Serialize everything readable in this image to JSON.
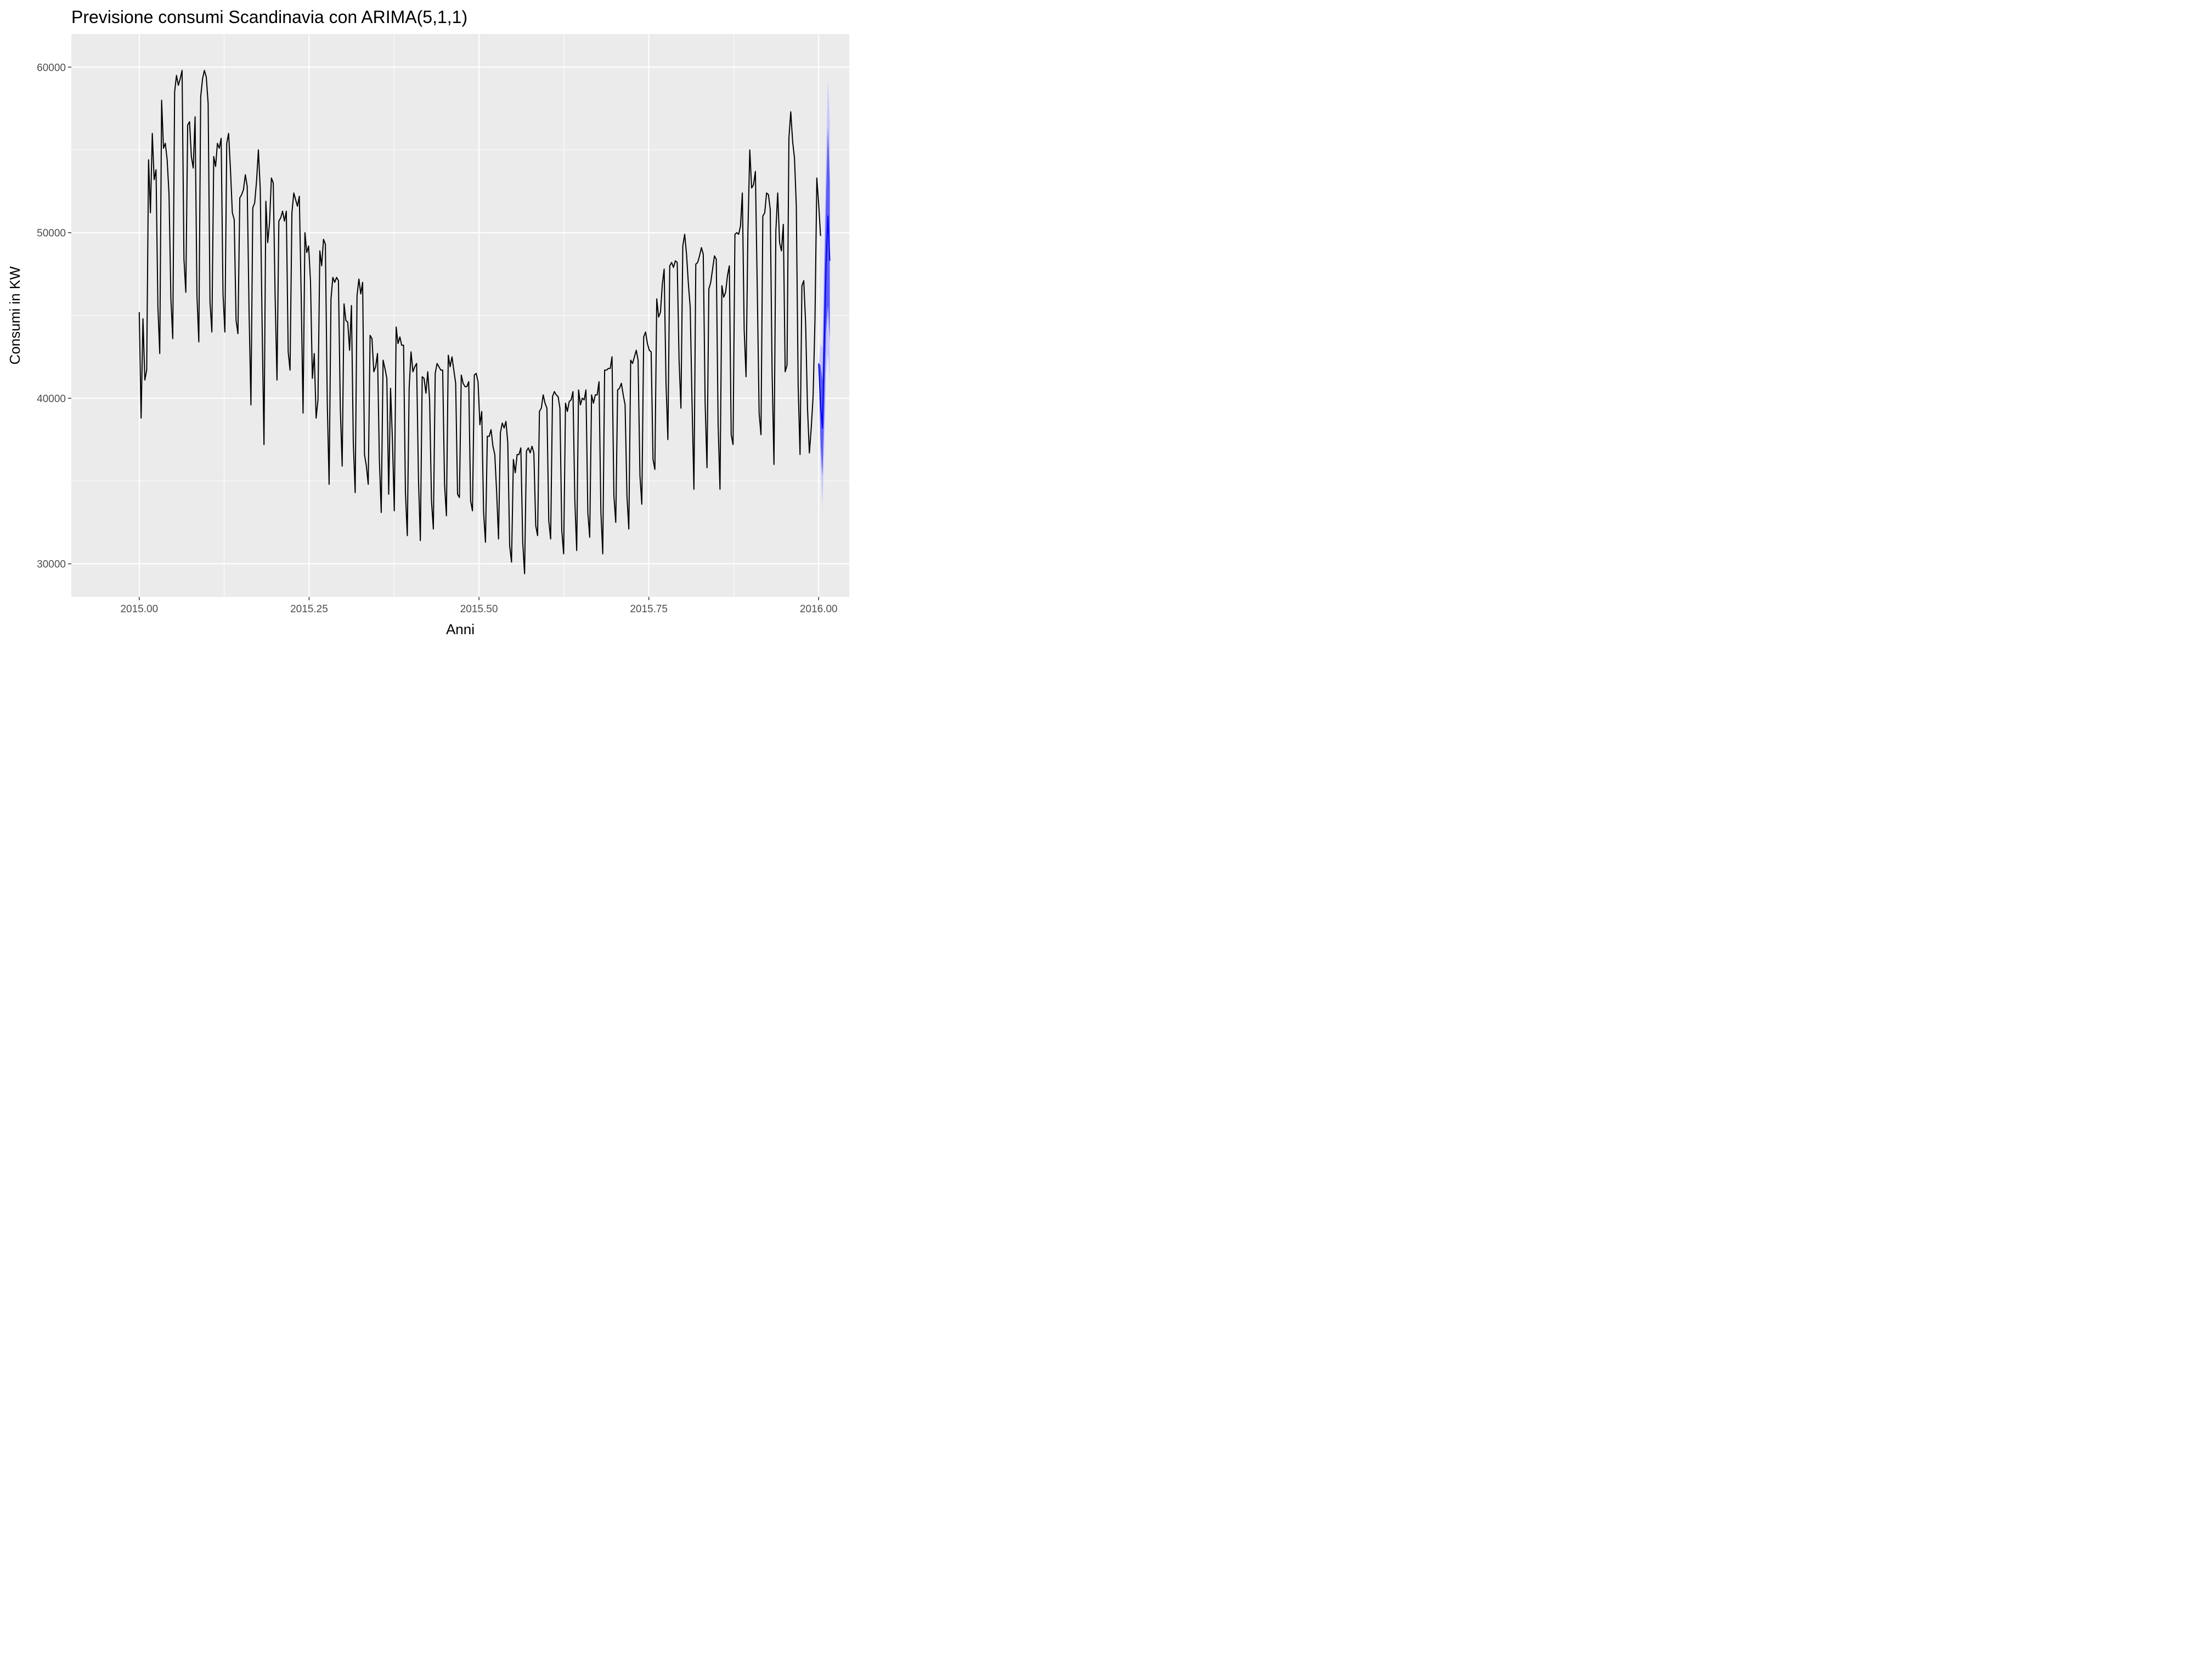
{
  "chart_data": {
    "type": "line",
    "title": "Previsione consumi Scandinavia con ARIMA(5,1,1)",
    "xlabel": "Anni",
    "ylabel": "Consumi in KW",
    "xlim": [
      2014.9,
      2016.045
    ],
    "ylim": [
      28000,
      62000
    ],
    "x_ticks": [
      2015.0,
      2015.25,
      2015.5,
      2015.75,
      2016.0
    ],
    "x_tick_labels": [
      "2015.00",
      "2015.25",
      "2015.50",
      "2015.75",
      "2016.00"
    ],
    "y_ticks": [
      30000,
      40000,
      50000,
      60000
    ],
    "y_tick_labels": [
      "30000",
      "40000",
      "50000",
      "60000"
    ],
    "grid": true,
    "legend": "none",
    "colors": {
      "panel": "#ebebeb",
      "grid": "#ffffff",
      "observed": "#000000",
      "forecast": "#0000ff",
      "interval_80": "#5b5bff",
      "interval_95": "#c8c8ff"
    },
    "series": [
      {
        "kind": "observed",
        "x_start": 2015.0,
        "x_step": 0.0027397,
        "values": [
          45200,
          38800,
          44800,
          41100,
          41700,
          54400,
          51200,
          56000,
          53200,
          53800,
          45500,
          42700,
          58000,
          55100,
          55400,
          54400,
          52300,
          46000,
          43600,
          58500,
          59500,
          58900,
          59300,
          59800,
          48400,
          46400,
          56500,
          56700,
          54600,
          53900,
          57000,
          46200,
          43400,
          58200,
          59300,
          59800,
          59400,
          57800,
          45800,
          44000,
          54600,
          54000,
          55400,
          55100,
          55700,
          46300,
          44000,
          55400,
          56000,
          53800,
          51200,
          50800,
          44700,
          43900,
          52100,
          52300,
          52600,
          53500,
          52800,
          45200,
          39600,
          51500,
          51800,
          53100,
          55000,
          52600,
          44400,
          37200,
          51900,
          49400,
          50600,
          53300,
          53000,
          46100,
          41100,
          50700,
          50900,
          51300,
          50700,
          51300,
          42800,
          41700,
          51200,
          52400,
          52000,
          51600,
          52200,
          46200,
          39100,
          50000,
          48800,
          49200,
          47000,
          41200,
          42700,
          38800,
          39900,
          48900,
          48000,
          49600,
          49300,
          39800,
          34800,
          46000,
          47300,
          47000,
          47300,
          47100,
          39400,
          35900,
          45700,
          44700,
          44600,
          42900,
          45600,
          37300,
          34300,
          46200,
          47200,
          46300,
          47000,
          36600,
          35900,
          34800,
          43800,
          43600,
          41600,
          41900,
          42700,
          36300,
          33100,
          42300,
          41800,
          41200,
          34200,
          40600,
          37500,
          33200,
          44300,
          43300,
          43700,
          43200,
          43200,
          34300,
          31700,
          40600,
          42800,
          41600,
          41900,
          42100,
          35100,
          31400,
          41300,
          41200,
          40300,
          41600,
          39900,
          33800,
          32100,
          41500,
          42100,
          41900,
          41700,
          41700,
          34800,
          32900,
          42600,
          41900,
          42500,
          41700,
          40900,
          34200,
          34000,
          41400,
          40900,
          40700,
          40700,
          41000,
          33800,
          33200,
          41400,
          41500,
          41000,
          38400,
          39200,
          33100,
          31300,
          37700,
          37700,
          38100,
          37100,
          36600,
          34300,
          31500,
          37900,
          38500,
          38200,
          38600,
          37300,
          31100,
          30100,
          36300,
          35500,
          36600,
          36600,
          37000,
          31300,
          29400,
          36800,
          37000,
          36700,
          37100,
          36700,
          32300,
          31700,
          39200,
          39400,
          40200,
          39700,
          39400,
          32600,
          31500,
          40100,
          40400,
          40200,
          40100,
          39400,
          32000,
          30600,
          39700,
          39200,
          39800,
          39900,
          40400,
          33800,
          30800,
          40500,
          39600,
          40000,
          39900,
          40500,
          33100,
          31600,
          40200,
          39700,
          40200,
          40200,
          41000,
          33100,
          30600,
          41700,
          41700,
          41800,
          41800,
          42500,
          34100,
          32500,
          40500,
          40600,
          40900,
          40200,
          39600,
          34100,
          32100,
          42300,
          42100,
          42500,
          42900,
          42300,
          35300,
          33600,
          43700,
          44000,
          43300,
          42900,
          42800,
          36300,
          35700,
          46000,
          44900,
          45200,
          46900,
          47800,
          40900,
          37500,
          48000,
          48200,
          47900,
          48300,
          48200,
          42300,
          39400,
          49200,
          49900,
          48700,
          46900,
          45500,
          39600,
          34500,
          48100,
          48200,
          48600,
          49100,
          48700,
          39700,
          35800,
          46600,
          47000,
          47800,
          48600,
          48400,
          38400,
          34500,
          46800,
          46100,
          46400,
          47400,
          48000,
          37800,
          37200,
          49900,
          50000,
          49900,
          50400,
          52400,
          44100,
          41300,
          50100,
          55000,
          52700,
          52900,
          53700,
          46700,
          39100,
          37800,
          51000,
          51200,
          52400,
          52300,
          51400,
          41500,
          36000,
          50100,
          52400,
          49400,
          48900,
          50500,
          41600,
          42000,
          55700,
          57300,
          55500,
          54500,
          51600,
          40700,
          36600,
          46800,
          47100,
          44500,
          39400,
          36700,
          38200,
          40100,
          44700,
          53300,
          51700,
          49800
        ]
      },
      {
        "kind": "forecast",
        "x_start": 2016.0,
        "x_step": 0.0027397,
        "values": [
          42100,
          39600,
          38200,
          43000,
          48200,
          51000,
          48300
        ],
        "lo80": [
          42100,
          37200,
          35300,
          39000,
          44000,
          45600,
          43500
        ],
        "hi80": [
          42100,
          42000,
          41100,
          47000,
          52400,
          56400,
          53100
        ],
        "lo95": [
          42100,
          35900,
          33400,
          37000,
          41500,
          42700,
          41000
        ],
        "hi95": [
          42100,
          43300,
          43000,
          49000,
          54900,
          59300,
          56700
        ]
      }
    ]
  }
}
